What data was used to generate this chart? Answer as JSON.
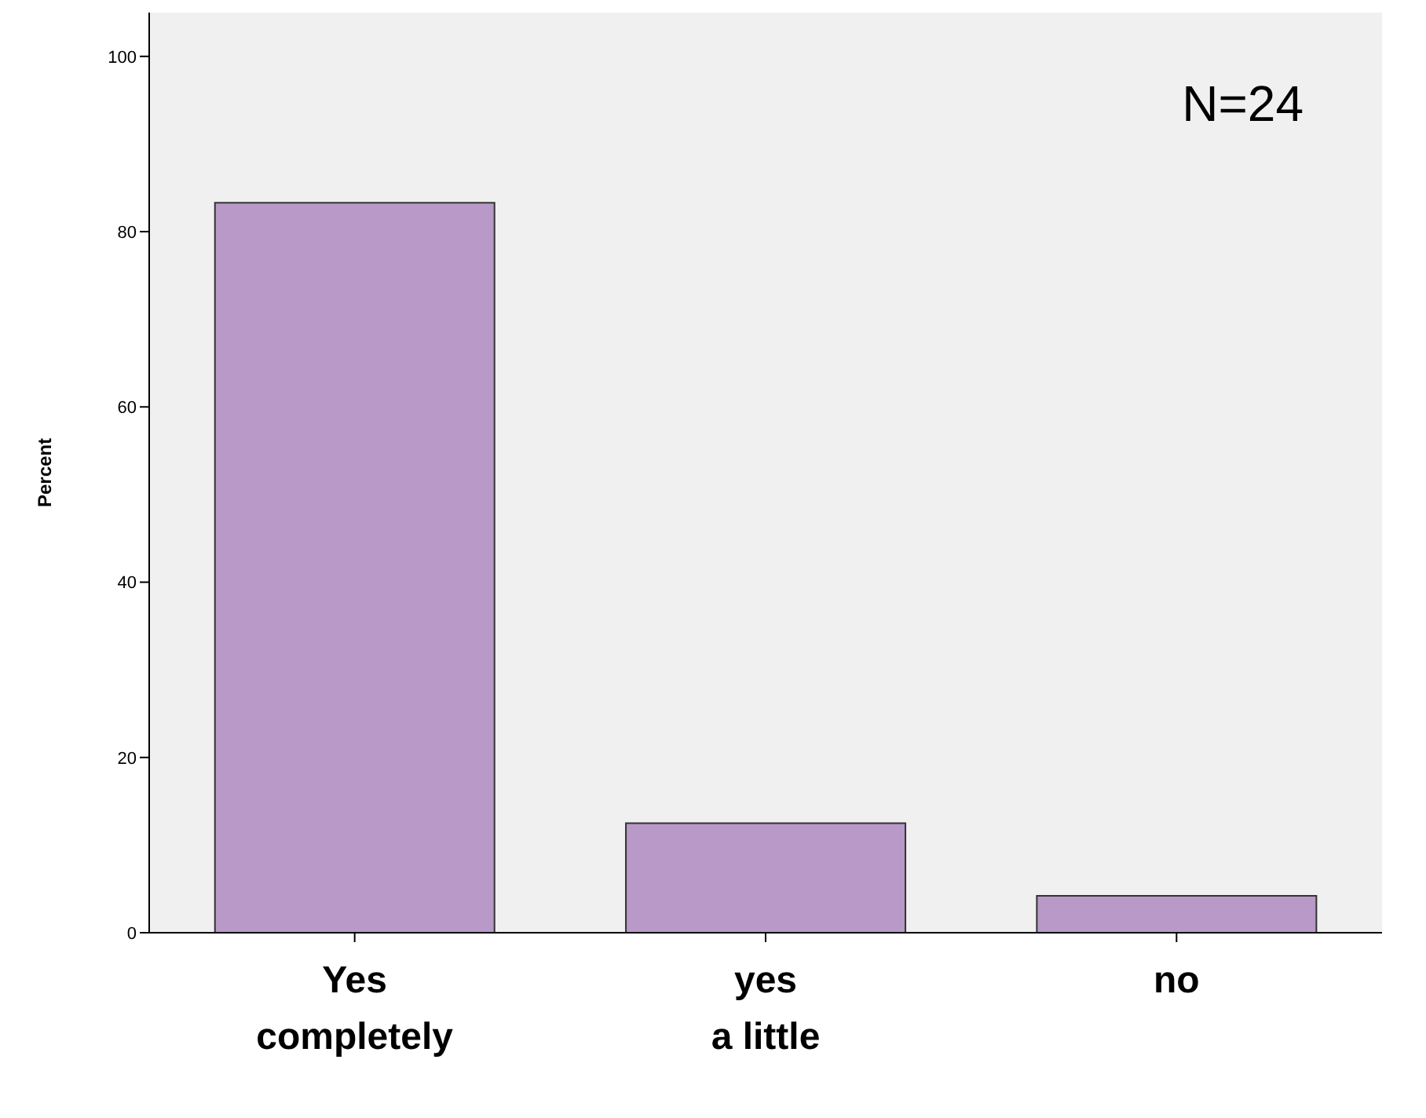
{
  "chart_data": {
    "type": "bar",
    "ylabel": "Percent",
    "categories": [
      "Yes completely",
      "yes a little",
      "no"
    ],
    "values": [
      83.3,
      12.5,
      4.2
    ],
    "color": "#b899c8",
    "ylim": [
      0,
      105
    ],
    "yticks": [
      0,
      20,
      40,
      60,
      80,
      100
    ],
    "annotations": [
      "N=24"
    ]
  }
}
